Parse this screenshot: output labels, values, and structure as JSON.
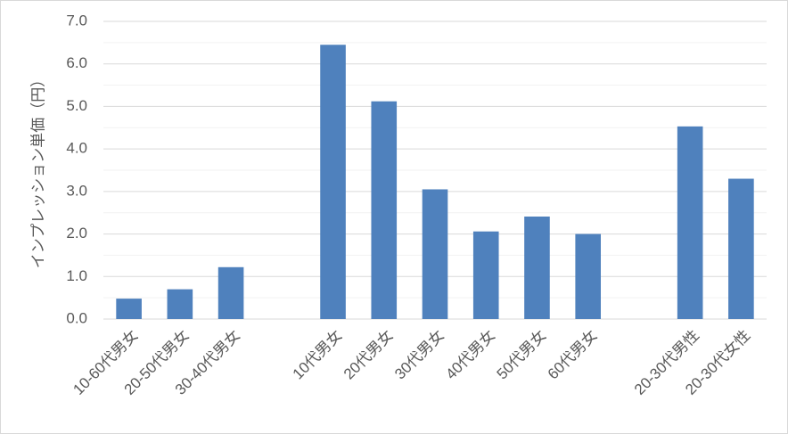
{
  "chart_data": {
    "type": "bar",
    "y_label": "インプレッション単価（円）",
    "categories": [
      "10-60代男女",
      "20-50代男女",
      "30-40代男女",
      null,
      "10代男女",
      "20代男女",
      "30代男女",
      "40代男女",
      "50代男女",
      "60代男女",
      null,
      "20-30代男性",
      "20-30代女性"
    ],
    "values": [
      0.48,
      0.7,
      1.22,
      null,
      6.45,
      5.12,
      3.05,
      2.06,
      2.41,
      2.0,
      null,
      4.53,
      3.3
    ],
    "color": "#4f81bd",
    "ylim": [
      0,
      7
    ],
    "yticks": [
      {
        "value": 0,
        "label": "0.0"
      },
      {
        "value": 1,
        "label": "1.0"
      },
      {
        "value": 2,
        "label": "2.0"
      },
      {
        "value": 3,
        "label": "3.0"
      },
      {
        "value": 4,
        "label": "4.0"
      },
      {
        "value": 5,
        "label": "5.0"
      },
      {
        "value": 6,
        "label": "6.0"
      },
      {
        "value": 7,
        "label": "7.0"
      }
    ],
    "minor_yticks": [
      0.5,
      1.5,
      2.5,
      3.5,
      4.5,
      5.5,
      6.5
    ],
    "grid": true
  }
}
